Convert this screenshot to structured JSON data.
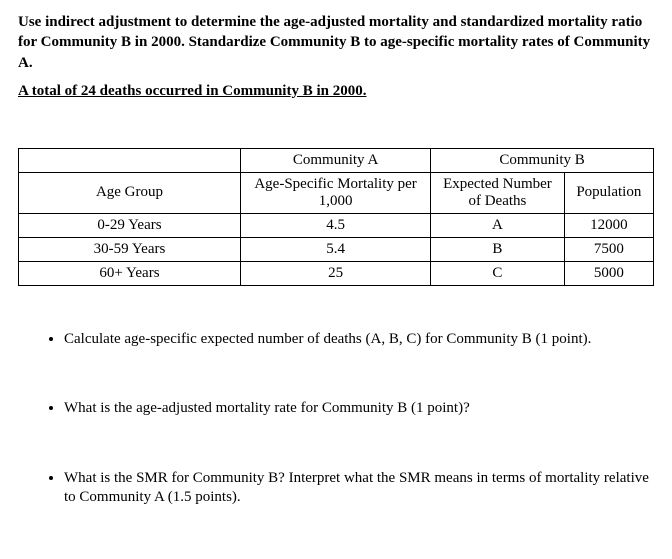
{
  "intro": "Use indirect adjustment to determine the age-adjusted mortality and standardized mortality ratio for Community B in 2000. Standardize Community B to age-specific mortality rates of Community A.",
  "note": "A total of 24 deaths occurred in Community B in 2000.",
  "table": {
    "topHeaders": {
      "blank": "",
      "commA": "Community A",
      "commB": "Community B"
    },
    "subHeaders": {
      "ageGroup": "Age Group",
      "ageSpecific": "Age-Specific Mortality per 1,000",
      "expected": "Expected Number of Deaths",
      "population": "Population"
    },
    "rows": [
      {
        "age": "0-29 Years",
        "mort": "4.5",
        "exp": "A",
        "pop": "12000"
      },
      {
        "age": "30-59 Years",
        "mort": "5.4",
        "exp": "B",
        "pop": "7500"
      },
      {
        "age": "60+ Years",
        "mort": "25",
        "exp": "C",
        "pop": "5000"
      }
    ]
  },
  "questions": [
    "Calculate age-specific expected number of deaths (A, B, C) for Community B (1 point).",
    "What is the age-adjusted mortality rate for Community B (1 point)?",
    "What is the SMR for Community B? Interpret what the SMR means in terms of mortality relative to Community A (1.5 points)."
  ]
}
